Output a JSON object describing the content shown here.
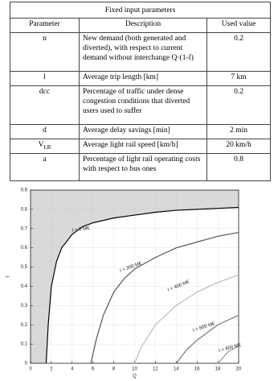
{
  "table": {
    "title": "Fixed input parameters",
    "header": [
      "Parameter",
      "Description",
      "Used value"
    ],
    "rows": [
      [
        "n",
        "New demand (both generated and diverted), with respect to current demand without interchange Q·(1-f)",
        "0.2"
      ],
      [
        "l",
        "Average trip length [km]",
        "7 km"
      ],
      [
        "dcc",
        "Percentage of traffic under dense congestion conditions that diverted users used to suffer",
        "0.2"
      ],
      [
        "d",
        "Average delay savings [min]",
        "2 min"
      ],
      [
        {
          "text": "V",
          "subscript": "LR"
        },
        "Average light rail speed [km/h]",
        "20 km/h"
      ],
      [
        "a",
        "Percentage of light rail operating costs with respect to bus ones",
        "0.8"
      ]
    ]
  },
  "chart_data": {
    "type": "line",
    "x_label": "Q",
    "y_label": "f",
    "xlim": [
      0,
      20
    ],
    "xticks": [
      0,
      2,
      4,
      6,
      8,
      10,
      12,
      14,
      16,
      18,
      20
    ],
    "ylim": [
      0,
      0.9
    ],
    "yticks": [
      0,
      0.1,
      0.2,
      0.3,
      0.4,
      0.5,
      0.6,
      0.7,
      0.8,
      0.9
    ],
    "grid": true,
    "shade_above_first_series": true,
    "shade_color": "#d9d9d9",
    "series": [
      {
        "name": "I = 0 M€",
        "color": "#000000",
        "x": [
          1.5,
          1.7,
          2,
          2.5,
          3,
          4,
          5,
          6,
          8,
          10,
          12,
          14,
          16,
          18,
          20
        ],
        "values": [
          0,
          0.2,
          0.4,
          0.53,
          0.6,
          0.67,
          0.71,
          0.73,
          0.755,
          0.77,
          0.785,
          0.795,
          0.8,
          0.805,
          0.81
        ]
      },
      {
        "name": "I = 200 M€",
        "color": "#555555",
        "x": [
          5.8,
          6.3,
          7,
          8,
          9,
          10,
          12,
          14,
          16,
          18,
          20
        ],
        "values": [
          0,
          0.12,
          0.25,
          0.37,
          0.44,
          0.49,
          0.55,
          0.6,
          0.63,
          0.66,
          0.68
        ]
      },
      {
        "name": "I = 400 M€",
        "color": "#bbbbbb",
        "x": [
          10,
          10.6,
          12,
          14,
          16,
          18,
          20
        ],
        "values": [
          0,
          0.08,
          0.2,
          0.3,
          0.37,
          0.42,
          0.46
        ]
      },
      {
        "name": "I = 600 M€",
        "color": "#777777",
        "x": [
          14,
          15,
          16,
          18,
          20
        ],
        "values": [
          0,
          0.07,
          0.12,
          0.2,
          0.25
        ]
      },
      {
        "name": "I = 800 M€",
        "color": "#999999",
        "x": [
          18,
          19,
          20
        ],
        "values": [
          0,
          0.06,
          0.09
        ]
      }
    ]
  }
}
